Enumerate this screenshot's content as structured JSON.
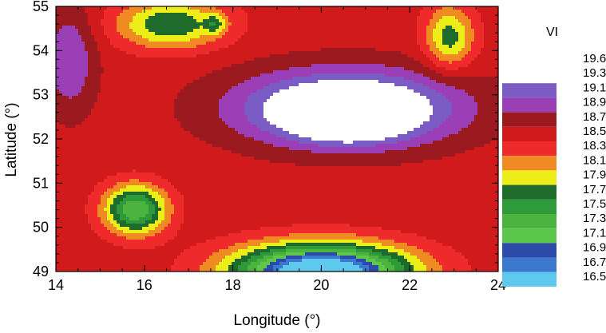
{
  "chart_data": {
    "type": "heatmap",
    "subtype": "filled-contour",
    "title": "",
    "xlabel": "Longitude (°)",
    "ylabel": "Latitude (°)",
    "xlim": [
      14,
      24
    ],
    "ylim": [
      49,
      55
    ],
    "xticks": [
      "14",
      "16",
      "18",
      "20",
      "22",
      "24"
    ],
    "yticks": [
      "49",
      "50",
      "51",
      "52",
      "53",
      "54",
      "55"
    ],
    "x_minor_step": 0.5,
    "y_minor_step": 0.2,
    "grid": false,
    "legend": {
      "title": "VI",
      "placement": "right",
      "labels": [
        "19.6",
        "19.3",
        "19.1",
        "18.9",
        "18.7",
        "18.5",
        "18.3",
        "18.1",
        "17.9",
        "17.7",
        "17.5",
        "17.3",
        "17.1",
        "16.9",
        "16.7",
        "16.5"
      ],
      "colors": [
        "#ffffff",
        "#7b5cc4",
        "#9a3fb5",
        "#9a1a1f",
        "#d01a1c",
        "#ee2a2a",
        "#f08a22",
        "#eded1a",
        "#1f6b2c",
        "#2f9a3a",
        "#4db33f",
        "#5cc74a",
        "#2d4aa8",
        "#3b78d0",
        "#5ec8ee"
      ]
    },
    "levels": [
      16.5,
      16.7,
      16.9,
      17.1,
      17.3,
      17.5,
      17.7,
      17.9,
      18.1,
      18.3,
      18.5,
      18.7,
      18.9,
      19.1,
      19.3,
      19.6
    ],
    "background_value": 18.6,
    "regions": [
      {
        "name": "northwest-dark-red-band",
        "value": 18.8,
        "x": 14.3,
        "y": 53.8,
        "sx": 0.6,
        "sy": 1.2,
        "amp": 0.5
      },
      {
        "name": "northwest-orange-cell",
        "value": 18.2,
        "x": 16.6,
        "y": 54.6,
        "sx": 1.2,
        "sy": 0.55,
        "amp": -0.9
      },
      {
        "name": "northwest-yellow-spot",
        "value": 18.0,
        "x": 17.6,
        "y": 54.6,
        "sx": 0.22,
        "sy": 0.2,
        "amp": -0.5
      },
      {
        "name": "northeast-orange-cell",
        "value": 18.2,
        "x": 22.9,
        "y": 54.3,
        "sx": 0.55,
        "sy": 0.7,
        "amp": -0.8
      },
      {
        "name": "central-purple-high",
        "value": 19.4,
        "x": 20.6,
        "y": 52.7,
        "sx": 2.5,
        "sy": 0.85,
        "amp": 1.2
      },
      {
        "name": "central-white-core",
        "value": 19.7,
        "x": 20.6,
        "y": 52.5,
        "sx": 1.1,
        "sy": 0.45,
        "amp": 0.9
      },
      {
        "name": "southwest-green-low",
        "value": 17.8,
        "x": 15.8,
        "y": 50.4,
        "sx": 0.7,
        "sy": 0.55,
        "amp": -1.3
      },
      {
        "name": "south-central-blue-low",
        "value": 16.8,
        "x": 20.0,
        "y": 49.0,
        "sx": 1.9,
        "sy": 0.6,
        "amp": -2.4
      }
    ]
  }
}
